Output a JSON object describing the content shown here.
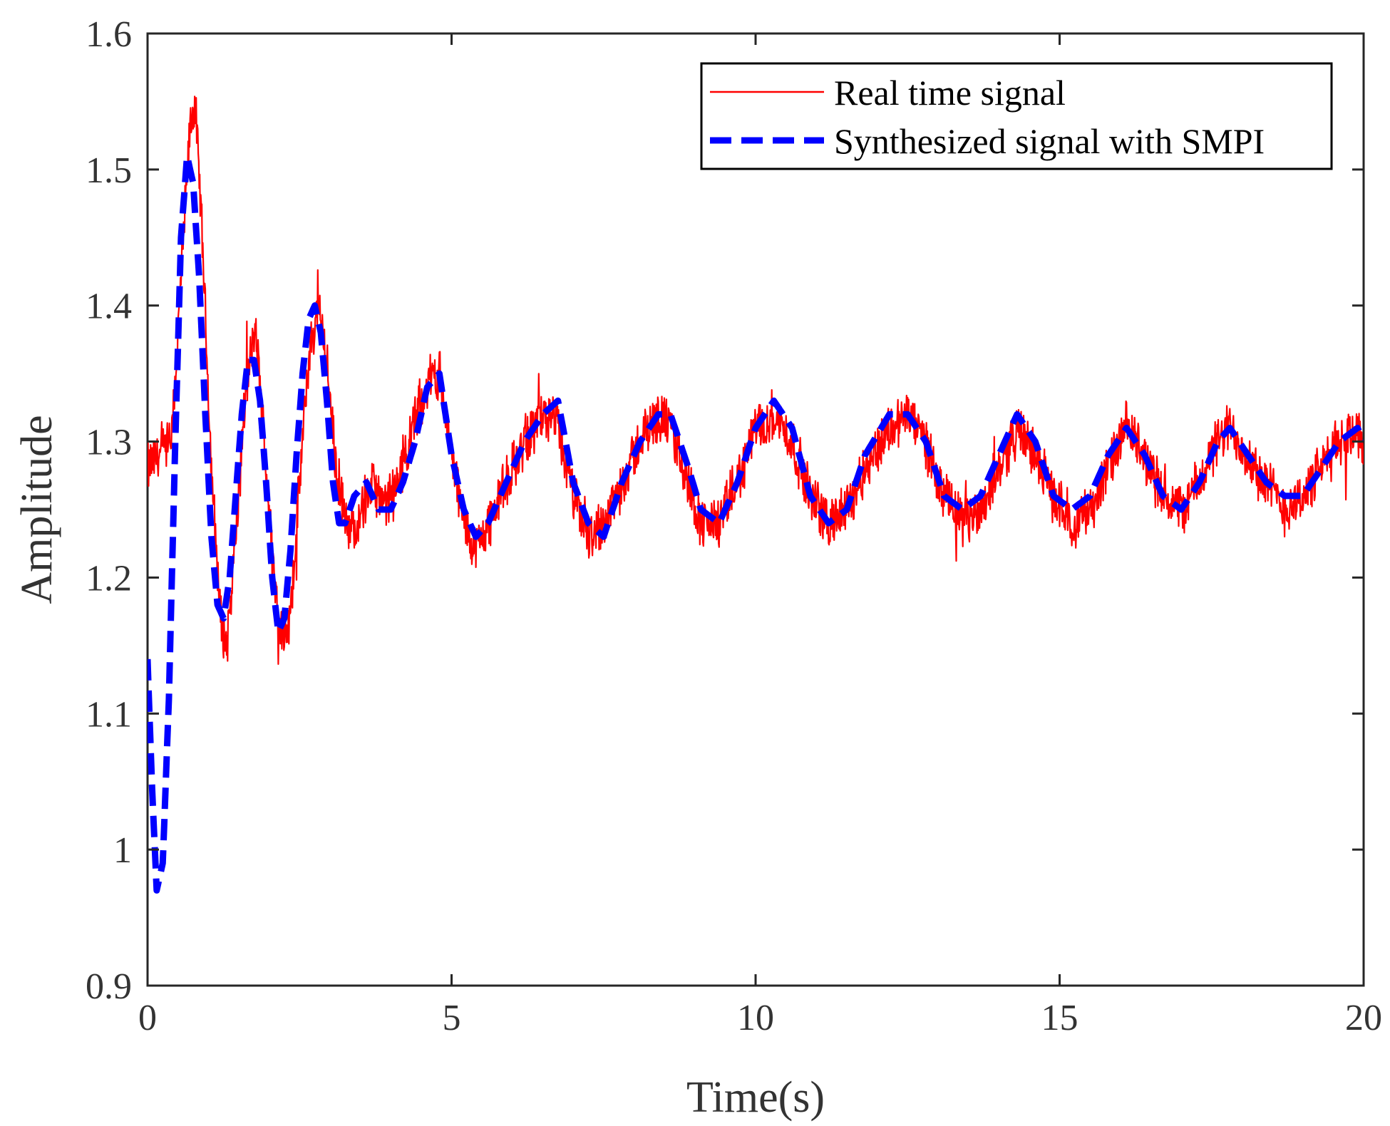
{
  "chart_data": {
    "type": "line",
    "title": "",
    "xlabel": "Time(s)",
    "ylabel": "Amplitude",
    "xlim": [
      0,
      20
    ],
    "ylim": [
      0.9,
      1.6
    ],
    "xticks": [
      0,
      5,
      10,
      15,
      20
    ],
    "xtick_labels": [
      "0",
      "5",
      "10",
      "15",
      "20"
    ],
    "yticks": [
      0.9,
      1.0,
      1.1,
      1.2,
      1.3,
      1.4,
      1.5,
      1.6
    ],
    "ytick_labels": [
      "0.9",
      "1",
      "1.1",
      "1.2",
      "1.3",
      "1.4",
      "1.5",
      "1.6"
    ],
    "grid": false,
    "legend_position": "top-right",
    "series": [
      {
        "name": "Real time signal",
        "color": "#ff0000",
        "style": "solid",
        "noise_amplitude": 0.022,
        "x": [
          0,
          0.2,
          0.4,
          0.55,
          0.7,
          0.78,
          0.9,
          1.05,
          1.2,
          1.3,
          1.45,
          1.6,
          1.75,
          1.8,
          1.95,
          2.1,
          2.25,
          2.35,
          2.5,
          2.65,
          2.8,
          2.9,
          3.1,
          3.3,
          3.5,
          3.7,
          3.9,
          4.1,
          4.3,
          4.5,
          4.7,
          4.8,
          5.0,
          5.2,
          5.4,
          5.6,
          5.9,
          6.2,
          6.5,
          6.75,
          7.0,
          7.25,
          7.5,
          7.8,
          8.1,
          8.4,
          8.6,
          8.9,
          9.1,
          9.4,
          9.7,
          10.0,
          10.3,
          10.6,
          10.9,
          11.2,
          11.5,
          11.8,
          12.2,
          12.5,
          12.8,
          13.1,
          13.4,
          13.7,
          14.0,
          14.3,
          14.6,
          14.9,
          15.2,
          15.5,
          15.8,
          16.1,
          16.4,
          16.7,
          17.0,
          17.3,
          17.6,
          17.8,
          18.1,
          18.4,
          18.7,
          19.0,
          19.3,
          19.6,
          19.9,
          20.0
        ],
        "y": [
          1.28,
          1.29,
          1.3,
          1.42,
          1.53,
          1.55,
          1.45,
          1.28,
          1.17,
          1.15,
          1.23,
          1.33,
          1.38,
          1.37,
          1.28,
          1.19,
          1.15,
          1.17,
          1.27,
          1.36,
          1.4,
          1.38,
          1.28,
          1.23,
          1.25,
          1.27,
          1.25,
          1.27,
          1.3,
          1.33,
          1.35,
          1.35,
          1.29,
          1.24,
          1.22,
          1.24,
          1.27,
          1.3,
          1.32,
          1.31,
          1.26,
          1.23,
          1.24,
          1.27,
          1.3,
          1.32,
          1.31,
          1.27,
          1.24,
          1.24,
          1.27,
          1.31,
          1.32,
          1.3,
          1.26,
          1.24,
          1.25,
          1.28,
          1.31,
          1.32,
          1.3,
          1.26,
          1.24,
          1.25,
          1.28,
          1.31,
          1.29,
          1.26,
          1.24,
          1.25,
          1.28,
          1.31,
          1.29,
          1.26,
          1.25,
          1.27,
          1.3,
          1.31,
          1.29,
          1.27,
          1.25,
          1.26,
          1.28,
          1.3,
          1.31,
          1.3
        ]
      },
      {
        "name": "Synthesized signal with SMPI",
        "color": "#0000ff",
        "style": "dashed",
        "x": [
          0,
          0.07,
          0.15,
          0.25,
          0.35,
          0.45,
          0.55,
          0.65,
          0.75,
          0.85,
          0.95,
          1.05,
          1.15,
          1.25,
          1.35,
          1.45,
          1.55,
          1.65,
          1.75,
          1.85,
          1.95,
          2.05,
          2.15,
          2.25,
          2.35,
          2.45,
          2.55,
          2.65,
          2.75,
          2.85,
          2.95,
          3.05,
          3.15,
          3.25,
          3.4,
          3.6,
          3.8,
          4.0,
          4.2,
          4.4,
          4.6,
          4.8,
          5.0,
          5.2,
          5.4,
          5.6,
          5.9,
          6.2,
          6.5,
          6.75,
          7.0,
          7.25,
          7.5,
          7.8,
          8.1,
          8.4,
          8.6,
          8.9,
          9.1,
          9.4,
          9.7,
          10.0,
          10.3,
          10.6,
          10.9,
          11.2,
          11.5,
          11.8,
          12.2,
          12.5,
          12.8,
          13.1,
          13.4,
          13.7,
          14.0,
          14.3,
          14.6,
          14.9,
          15.2,
          15.5,
          15.8,
          16.1,
          16.4,
          16.7,
          17.0,
          17.3,
          17.6,
          17.8,
          18.1,
          18.4,
          18.7,
          19.0,
          19.3,
          19.6,
          19.9,
          20.0
        ],
        "y": [
          1.14,
          1.05,
          0.97,
          0.99,
          1.11,
          1.29,
          1.45,
          1.51,
          1.49,
          1.42,
          1.32,
          1.23,
          1.18,
          1.17,
          1.2,
          1.26,
          1.32,
          1.36,
          1.36,
          1.33,
          1.27,
          1.2,
          1.16,
          1.17,
          1.22,
          1.29,
          1.35,
          1.39,
          1.4,
          1.38,
          1.33,
          1.27,
          1.24,
          1.24,
          1.26,
          1.27,
          1.25,
          1.25,
          1.27,
          1.3,
          1.34,
          1.35,
          1.29,
          1.25,
          1.23,
          1.24,
          1.27,
          1.3,
          1.32,
          1.33,
          1.27,
          1.24,
          1.23,
          1.27,
          1.3,
          1.32,
          1.32,
          1.28,
          1.25,
          1.24,
          1.27,
          1.31,
          1.33,
          1.31,
          1.26,
          1.24,
          1.25,
          1.29,
          1.32,
          1.32,
          1.3,
          1.26,
          1.25,
          1.26,
          1.29,
          1.32,
          1.3,
          1.26,
          1.25,
          1.26,
          1.29,
          1.31,
          1.29,
          1.26,
          1.25,
          1.27,
          1.3,
          1.31,
          1.29,
          1.27,
          1.26,
          1.26,
          1.28,
          1.3,
          1.31,
          1.3
        ]
      }
    ]
  },
  "colors": {
    "axis": "#262626",
    "text": "#333333"
  }
}
